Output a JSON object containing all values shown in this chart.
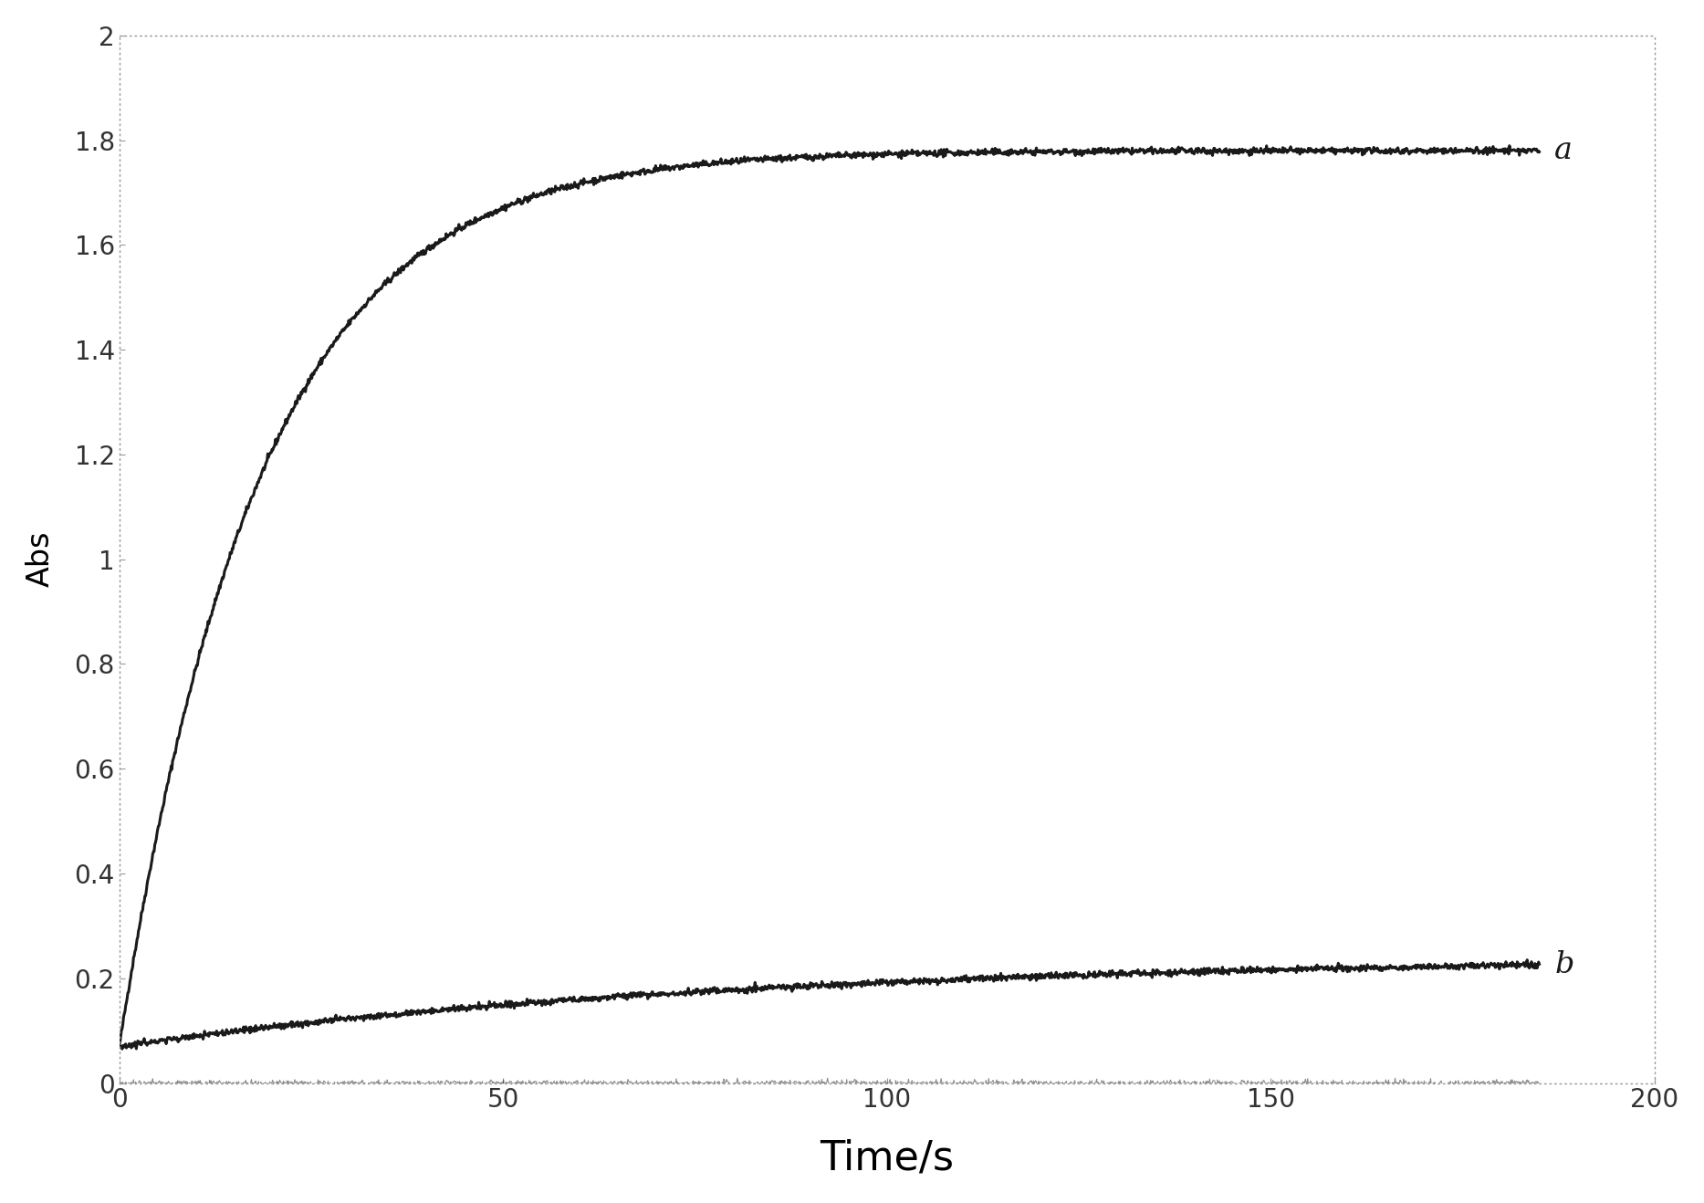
{
  "title": "",
  "xlabel": "Time/s",
  "ylabel": "Abs",
  "xlim": [
    0,
    200
  ],
  "ylim": [
    0,
    2
  ],
  "xticks": [
    0,
    50,
    100,
    150,
    200
  ],
  "yticks": [
    0,
    0.2,
    0.4,
    0.6,
    0.8,
    1.0,
    1.2,
    1.4,
    1.6,
    1.8,
    2.0
  ],
  "curve_a": {
    "y0": 0.07,
    "plateau": 1.78,
    "k": 0.055,
    "label": "a"
  },
  "curve_b": {
    "y0": 0.07,
    "plateau": 0.245,
    "k": 0.012,
    "label": "b"
  },
  "noise_level_a": 0.003,
  "noise_level_b": 0.003,
  "noise_level_zero": 0.003,
  "line_color": "#1a1a1a",
  "line_width": 2.2,
  "background_color": "#ffffff",
  "plot_bg_color": "#ffffff",
  "xlabel_fontsize": 32,
  "ylabel_fontsize": 24,
  "tick_fontsize": 20,
  "label_fontsize": 24,
  "spine_linestyle": "dotted",
  "spine_color": "#999999",
  "spine_linewidth": 1.0
}
